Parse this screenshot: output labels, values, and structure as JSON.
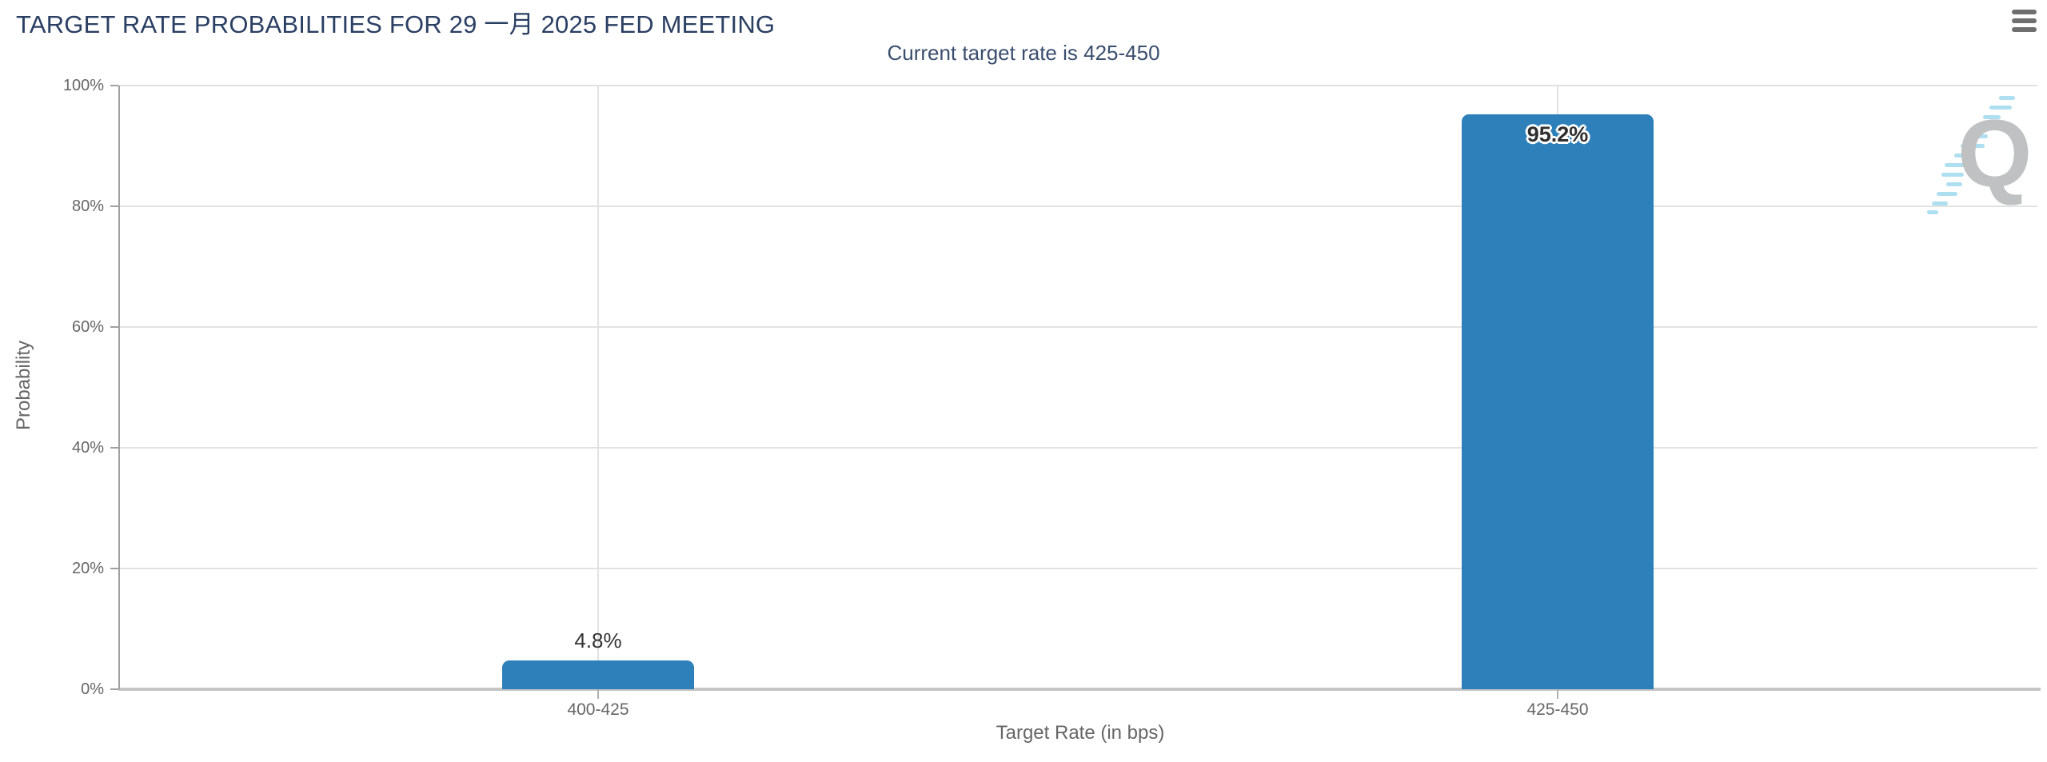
{
  "header": {
    "title": "TARGET RATE PROBABILITIES FOR 29 一月 2025 FED MEETING",
    "subtitle": "Current target rate is 425-450",
    "menu_icon": "hamburger-icon"
  },
  "watermark": {
    "letter": "Q",
    "q_color": "#bfc1c3",
    "dash_color": "#aedff0"
  },
  "chart_data": {
    "type": "bar",
    "title": "TARGET RATE PROBABILITIES FOR 29 一月 2025 FED MEETING",
    "subtitle": "Current target rate is 425-450",
    "categories": [
      "400-425",
      "425-450"
    ],
    "values": [
      4.8,
      95.2
    ],
    "data_labels": [
      "4.8%",
      "95.2%"
    ],
    "series_name": "Probability",
    "xlabel": "Target Rate (in bps)",
    "ylabel": "Probability",
    "ylim": [
      0,
      100
    ],
    "ytick_values": [
      0,
      20,
      40,
      60,
      80,
      100
    ],
    "ytick_labels": [
      "0%",
      "20%",
      "40%",
      "60%",
      "80%",
      "100%"
    ],
    "grid": true,
    "legend": false,
    "bar_color": "#2d80ba"
  },
  "colors": {
    "title": "#2b3f63",
    "subtitle": "#3a4e6e",
    "bar": "#2d80ba",
    "axis_text": "#666666",
    "data_label": "#333333",
    "gridline": "#e2e2e2",
    "x_axis_line": "#c6c6c6",
    "y_axis_line": "#a0a0a0",
    "menu_icon": "#6f6f6f"
  }
}
